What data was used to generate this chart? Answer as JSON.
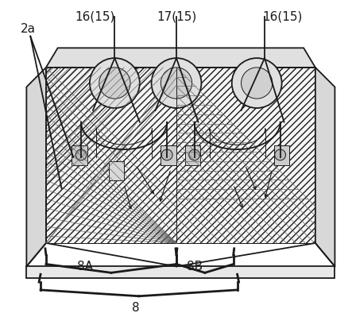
{
  "bg_color": "#ffffff",
  "line_color": "#1a1a1a",
  "label_color": "#000000",
  "label_texts": {
    "2a": "2a",
    "16_15_left": "16(15)",
    "17_15": "17(15)",
    "16_15_right": "16(15)",
    "8A": "8A",
    "8B": "8B",
    "8": "8"
  },
  "figsize": [
    4.43,
    3.99
  ],
  "dpi": 100
}
